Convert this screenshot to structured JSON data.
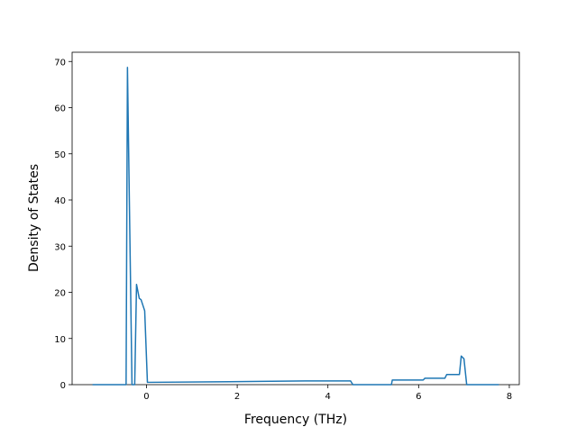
{
  "chart_data": {
    "type": "line",
    "x_label": "Frequency (THz)",
    "y_label": "Density of States",
    "x": [
      -1.19,
      -0.45,
      -0.42,
      -0.32,
      -0.26,
      -0.22,
      -0.16,
      -0.12,
      -0.04,
      0.02,
      1.5,
      2.5,
      3.5,
      4.5,
      4.55,
      5.4,
      5.42,
      6.1,
      6.14,
      6.58,
      6.62,
      6.9,
      6.94,
      7.0,
      7.06,
      7.77
    ],
    "series": [
      {
        "color": "#1f77b4",
        "values": [
          0,
          0,
          68.7,
          0,
          0,
          21.7,
          18.7,
          18.4,
          16.0,
          0.5,
          0.6,
          0.7,
          0.8,
          0.8,
          0,
          0,
          1.0,
          1.0,
          1.4,
          1.4,
          2.2,
          2.2,
          6.2,
          5.6,
          0,
          0
        ]
      }
    ],
    "xlim": [
      -1.64,
      8.22
    ],
    "ylim": [
      0,
      72
    ],
    "xticks": [
      0,
      2,
      4,
      6,
      8
    ],
    "yticks": [
      0,
      10,
      20,
      30,
      40,
      50,
      60,
      70
    ]
  }
}
